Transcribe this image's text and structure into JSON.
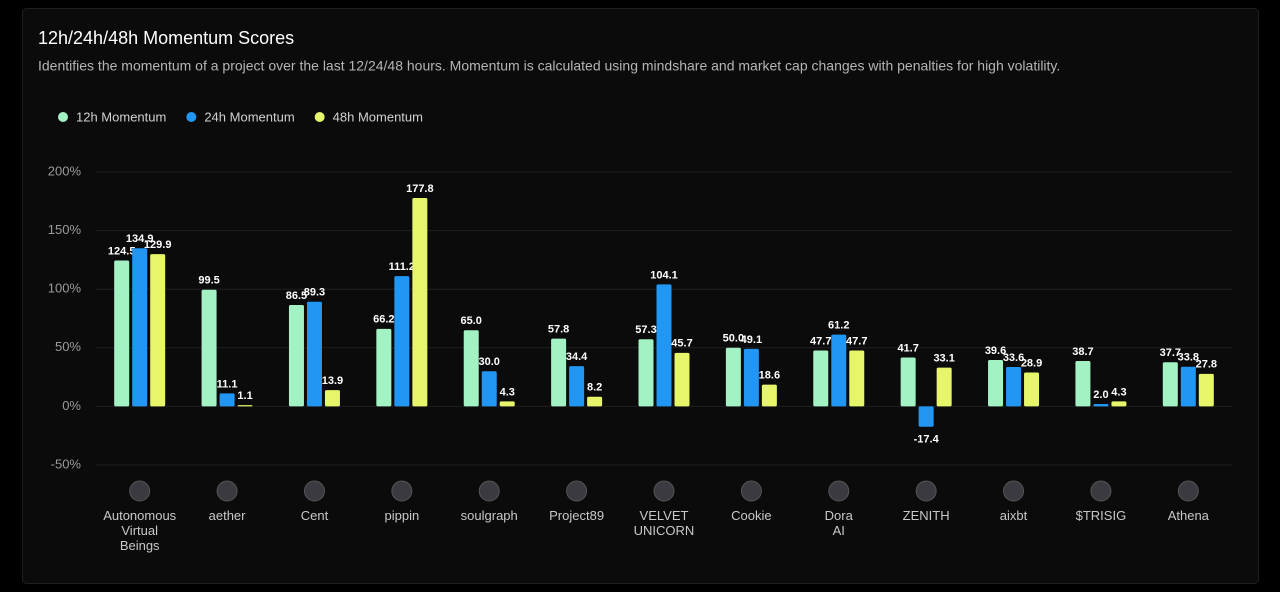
{
  "chart_data": {
    "type": "bar",
    "title": "12h/24h/48h Momentum Scores",
    "subtitle": "Identifies the momentum of a project over the last 12/24/48 hours. Momentum is calculated using mindshare and market cap changes with penalties for high volatility.",
    "legend": "top-left",
    "grid": true,
    "categories": [
      [
        "Autonomous",
        "Virtual",
        "Beings"
      ],
      [
        "aether"
      ],
      [
        "Cent"
      ],
      [
        "pippin"
      ],
      [
        "soulgraph"
      ],
      [
        "Project89"
      ],
      [
        "VELVET",
        "UNICORN"
      ],
      [
        "Cookie"
      ],
      [
        "Dora",
        "AI"
      ],
      [
        "ZENITH"
      ],
      [
        "aixbt"
      ],
      [
        "$TRISIG"
      ],
      [
        "Athena"
      ]
    ],
    "ylim": [
      -50,
      200
    ],
    "yticks": [
      {
        "value": -50,
        "label": "-50%"
      },
      {
        "value": 0,
        "label": "0%"
      },
      {
        "value": 50,
        "label": "50%"
      },
      {
        "value": 100,
        "label": "100%"
      },
      {
        "value": 150,
        "label": "150%"
      },
      {
        "value": 200,
        "label": "200%"
      }
    ],
    "series": [
      {
        "name": "12h Momentum",
        "color": "#a3f2c4",
        "values": [
          124.5,
          99.5,
          86.5,
          66.2,
          65.0,
          57.8,
          57.3,
          50.0,
          47.7,
          41.7,
          39.6,
          38.7,
          37.7
        ],
        "value_labels": [
          "124.5",
          "99.5",
          "86.5",
          "66.2",
          "65.0",
          "57.8",
          "57.3",
          "50.0",
          "47.7",
          "41.7",
          "39.6",
          "38.7",
          "37.7"
        ]
      },
      {
        "name": "24h Momentum",
        "color": "#2196f3",
        "values": [
          134.9,
          11.1,
          89.3,
          111.2,
          30.0,
          34.4,
          104.1,
          49.1,
          61.2,
          -17.4,
          33.6,
          2.0,
          33.8
        ],
        "value_labels": [
          "134.9",
          "11.1",
          "89.3",
          "111.2",
          "30.0",
          "34.4",
          "104.1",
          "49.1",
          "61.2",
          "-17.4",
          "33.6",
          "2.0",
          "33.8"
        ]
      },
      {
        "name": "48h Momentum",
        "color": "#e6f56a",
        "values": [
          129.9,
          1.1,
          13.9,
          177.8,
          4.3,
          8.2,
          45.7,
          18.6,
          47.7,
          33.1,
          28.9,
          4.3,
          27.8
        ],
        "value_labels": [
          "129.9",
          "1.1",
          "13.9",
          "177.8",
          "4.3",
          "8.2",
          "45.7",
          "18.6",
          "47.7",
          "33.1",
          "28.9",
          "4.3",
          "27.8"
        ]
      }
    ]
  }
}
